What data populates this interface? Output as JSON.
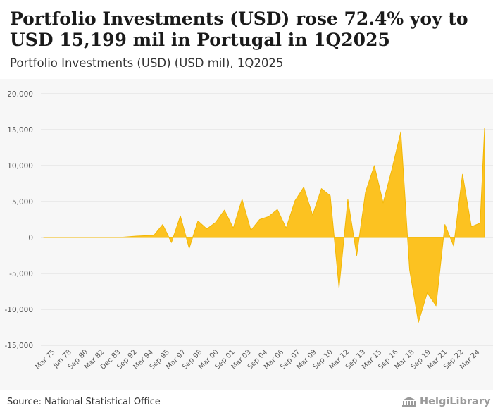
{
  "header": {
    "title": "Portfolio Investments (USD) rose 72.4% yoy to USD 15,199 mil in Portugal in 1Q2025",
    "subtitle": "Portfolio Investments (USD) (USD mil), 1Q2025"
  },
  "footer": {
    "source": "Source: National Statistical Office",
    "brand": "HelgiLibrary"
  },
  "colors": {
    "area_fill": "#fcc221",
    "area_stroke": "#f2b705",
    "grid": "#dddddd",
    "axis_text": "#555555",
    "background": "#f7f7f7"
  },
  "chart_data": {
    "type": "area",
    "title": "Portfolio Investments (USD) (USD mil), 1Q2025",
    "xlabel": "",
    "ylabel": "",
    "unit": "USD mil",
    "ylim": [
      -15000,
      20000
    ],
    "yticks": [
      20000,
      15000,
      10000,
      5000,
      0,
      -5000,
      -10000,
      -15000
    ],
    "ytick_labels": [
      "20,000",
      "15,000",
      "10,000",
      "5,000",
      "0",
      "-5,000",
      "-10,000",
      "-15,000"
    ],
    "xtick_labels": [
      "Mar 75",
      "Jun 78",
      "Sep 80",
      "Mar 82",
      "Dec 83",
      "Sep 92",
      "Mar 94",
      "Sep 95",
      "Mar 97",
      "Sep 98",
      "Mar 00",
      "Sep 01",
      "Mar 03",
      "Sep 04",
      "Mar 06",
      "Sep 07",
      "Mar 09",
      "Sep 10",
      "Mar 12",
      "Sep 13",
      "Mar 15",
      "Sep 16",
      "Mar 18",
      "Sep 19",
      "Mar 21",
      "Sep 22",
      "Mar 24"
    ],
    "x_start": "1Q1975",
    "x_end": "1Q2025",
    "x_index": [
      0,
      10,
      20,
      28,
      36,
      42,
      50,
      54,
      58,
      62,
      66,
      70,
      74,
      78,
      82,
      86,
      90,
      94,
      98,
      102,
      106,
      110,
      114,
      118,
      122,
      126,
      130,
      134,
      138,
      142,
      146,
      150,
      154,
      158,
      162,
      166,
      170,
      174,
      178,
      182,
      186,
      190,
      194,
      198,
      200
    ],
    "series": [
      {
        "name": "Portfolio Investments (USD)",
        "values": [
          0,
          0,
          0,
          0,
          50,
          200,
          300,
          1800,
          -700,
          3000,
          -1500,
          2300,
          1200,
          2100,
          3800,
          1300,
          5300,
          1000,
          2500,
          2900,
          3900,
          1300,
          5100,
          7000,
          3100,
          6800,
          5800,
          -7000,
          5300,
          -2500,
          6300,
          10000,
          4800,
          9500,
          14700,
          -4500,
          -11800,
          -7700,
          -9500,
          1800,
          -1200,
          8800,
          1500,
          2000,
          15199
        ]
      }
    ]
  }
}
